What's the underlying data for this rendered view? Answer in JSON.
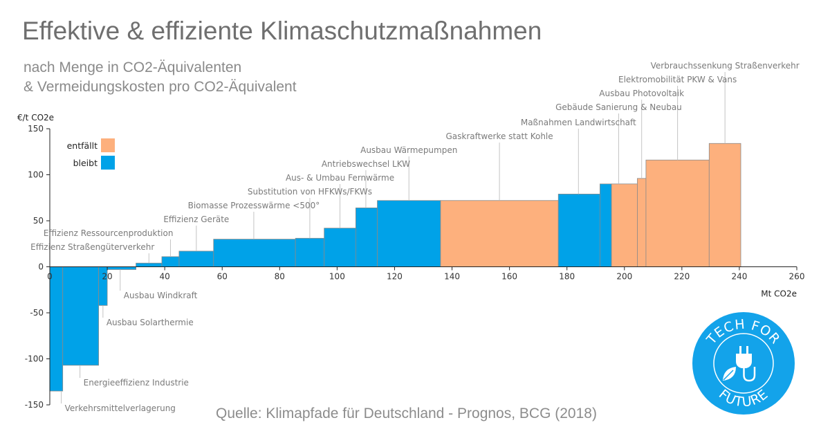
{
  "title": "Effektive & effiziente Klimaschutzmaßnahmen",
  "subtitle_line1": "nach Menge in CO2-Äquivalenten",
  "subtitle_line2": "& Vermeidungskosten pro CO2-Äquivalent",
  "source": "Quelle: Klimapfade für Deutschland - Prognos, BCG (2018)",
  "logo": {
    "text_top": "TECH FOR",
    "text_bottom": "FUTURE",
    "icon": "plug-leaf-icon",
    "color": "#13a3ea"
  },
  "colors": {
    "bleibt": "#00a2e8",
    "entfaellt": "#fdb07d",
    "annotation": "#7a7a7a"
  },
  "chart_data": {
    "type": "bar",
    "title": "",
    "xlabel": "Mt CO2e",
    "ylabel": "€/t CO2e",
    "xlim": [
      0,
      260
    ],
    "ylim": [
      -150,
      150
    ],
    "xticks": [
      0,
      20,
      40,
      60,
      80,
      100,
      120,
      140,
      160,
      180,
      200,
      220,
      240,
      260
    ],
    "yticks": [
      -150,
      -100,
      -50,
      0,
      50,
      100,
      150
    ],
    "grid": false,
    "legend_position": "top-left",
    "series": [
      {
        "name": "entfällt",
        "color": "#fdb07d"
      },
      {
        "name": "bleibt",
        "color": "#00a2e8"
      }
    ],
    "bars": [
      {
        "label": "Verkehrsmittelverlagerung",
        "x0": 0,
        "x1": 4.5,
        "y": -135,
        "series": "bleibt"
      },
      {
        "label": "Energieeffizienz Industrie",
        "x0": 4.5,
        "x1": 17,
        "y": -107,
        "series": "bleibt"
      },
      {
        "label": "Ausbau Solarthermie",
        "x0": 17,
        "x1": 20,
        "y": -42,
        "series": "bleibt"
      },
      {
        "label": "Ausbau Windkraft",
        "x0": 20,
        "x1": 30,
        "y": -3,
        "series": "bleibt"
      },
      {
        "label": "Effizienz Straßengüterverkehr",
        "x0": 30,
        "x1": 39,
        "y": 4,
        "series": "bleibt"
      },
      {
        "label": "Effizienz Ressourcenproduktion",
        "x0": 39,
        "x1": 45,
        "y": 11,
        "series": "bleibt"
      },
      {
        "label": "Effizienz Geräte",
        "x0": 45,
        "x1": 57,
        "y": 17,
        "series": "bleibt"
      },
      {
        "label": "Biomasse Prozesswärme <500°",
        "x0": 57,
        "x1": 85.5,
        "y": 30,
        "series": "bleibt"
      },
      {
        "label": "Substitution von HFKWs/FKWs",
        "x0": 85.5,
        "x1": 95.5,
        "y": 31,
        "series": "bleibt"
      },
      {
        "label": "Aus- & Umbau Fernwärme",
        "x0": 95.5,
        "x1": 106.5,
        "y": 42,
        "series": "bleibt"
      },
      {
        "label": "Antriebswechsel LKW",
        "x0": 106.5,
        "x1": 114,
        "y": 64,
        "series": "bleibt"
      },
      {
        "label": "Ausbau Wärmepumpen",
        "x0": 114,
        "x1": 136,
        "y": 72,
        "series": "bleibt"
      },
      {
        "label": "Gaskraftwerke statt Kohle",
        "x0": 136,
        "x1": 177,
        "y": 72,
        "series": "entfällt"
      },
      {
        "label": "Maßnahmen Landwirtschaft",
        "x0": 177,
        "x1": 191.5,
        "y": 79,
        "series": "bleibt"
      },
      {
        "label": "Gebäude Sanierung & Neubau",
        "x0": 191.5,
        "x1": 195.5,
        "y": 90,
        "series": "bleibt"
      },
      {
        "label": "",
        "x0": 195.5,
        "x1": 204.5,
        "y": 90,
        "series": "entfällt"
      },
      {
        "label": "Ausbau Photovoltaik",
        "x0": 204.5,
        "x1": 207.5,
        "y": 96,
        "series": "entfällt"
      },
      {
        "label": "Elektromobilität PKW & Vans",
        "x0": 207.5,
        "x1": 229.5,
        "y": 116,
        "series": "entfällt"
      },
      {
        "label": "Verbrauchssenkung Straßenverkehr",
        "x0": 229.5,
        "x1": 240.5,
        "y": 134,
        "series": "entfällt"
      }
    ]
  }
}
